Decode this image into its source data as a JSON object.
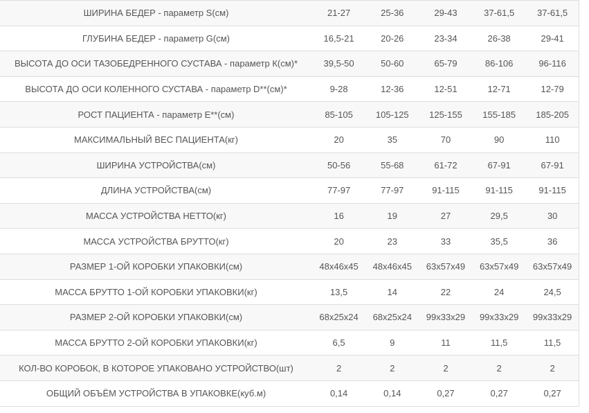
{
  "table": {
    "rows": [
      {
        "label": "ШИРИНА БЕДЕР - параметр S(см)",
        "values": [
          "21-27",
          "25-36",
          "29-43",
          "37-61,5",
          "37-61,5"
        ]
      },
      {
        "label": "ГЛУБИНА БЕДЕР - параметр G(см)",
        "values": [
          "16,5-21",
          "20-26",
          "23-34",
          "26-38",
          "29-41"
        ]
      },
      {
        "label": "ВЫСОТА ДО ОСИ ТАЗОБЕДРЕННОГО СУСТАВА - параметр К(см)*",
        "values": [
          "39,5-50",
          "50-60",
          "65-79",
          "86-106",
          "96-116"
        ]
      },
      {
        "label": "ВЫСОТА ДО ОСИ КОЛЕННОГО СУСТАВА - параметр D**(см)*",
        "values": [
          "9-28",
          "12-36",
          "12-51",
          "12-71",
          "12-79"
        ]
      },
      {
        "label": "РОСТ ПАЦИЕНТА - параметр Е**(см)",
        "values": [
          "85-105",
          "105-125",
          "125-155",
          "155-185",
          "185-205"
        ]
      },
      {
        "label": "МАКСИМАЛЬНЫЙ ВЕС ПАЦИЕНТА(кг)",
        "values": [
          "20",
          "35",
          "70",
          "90",
          "110"
        ]
      },
      {
        "label": "ШИРИНА УСТРОЙСТВА(см)",
        "values": [
          "50-56",
          "55-68",
          "61-72",
          "67-91",
          "67-91"
        ]
      },
      {
        "label": "ДЛИНА УСТРОЙСТВА(см)",
        "values": [
          "77-97",
          "77-97",
          "91-115",
          "91-115",
          "91-115"
        ]
      },
      {
        "label": "МАССА УСТРОЙСТВА НЕТТО(кг)",
        "values": [
          "16",
          "19",
          "27",
          "29,5",
          "30"
        ]
      },
      {
        "label": "МАССА УСТРОЙСТВА БРУТТО(кг)",
        "values": [
          "20",
          "23",
          "33",
          "35,5",
          "36"
        ]
      },
      {
        "label": "РАЗМЕР 1-ОЙ КОРОБКИ УПАКОВКИ(см)",
        "values": [
          "48x46x45",
          "48x46x45",
          "63x57x49",
          "63x57x49",
          "63x57x49"
        ]
      },
      {
        "label": "МАССА БРУТТО 1-ОЙ КОРОБКИ УПАКОВКИ(кг)",
        "values": [
          "13,5",
          "14",
          "22",
          "24",
          "24,5"
        ]
      },
      {
        "label": "РАЗМЕР 2-ОЙ КОРОБКИ УПАКОВКИ(см)",
        "values": [
          "68x25x24",
          "68x25x24",
          "99x33x29",
          "99x33x29",
          "99x33x29"
        ]
      },
      {
        "label": "МАССА БРУТТО 2-ОЙ КОРОБКИ УПАКОВКИ(кг)",
        "values": [
          "6,5",
          "9",
          "11",
          "11,5",
          "11,5"
        ]
      },
      {
        "label": "КОЛ-ВО КОРОБОК, В КОТОРОЕ УПАКОВАНО УСТРОЙСТВО(шт)",
        "values": [
          "2",
          "2",
          "2",
          "2",
          "2"
        ]
      },
      {
        "label": "ОБЩИЙ ОБЪЁМ УСТРОЙСТВА В УПАКОВКЕ(куб.м)",
        "values": [
          "0,14",
          "0,14",
          "0,27",
          "0,27",
          "0,27"
        ]
      }
    ]
  },
  "colors": {
    "striped_row_bg": "#f8f8f8",
    "row_bg": "#ffffff",
    "border": "#dddddd",
    "text": "#555555"
  }
}
